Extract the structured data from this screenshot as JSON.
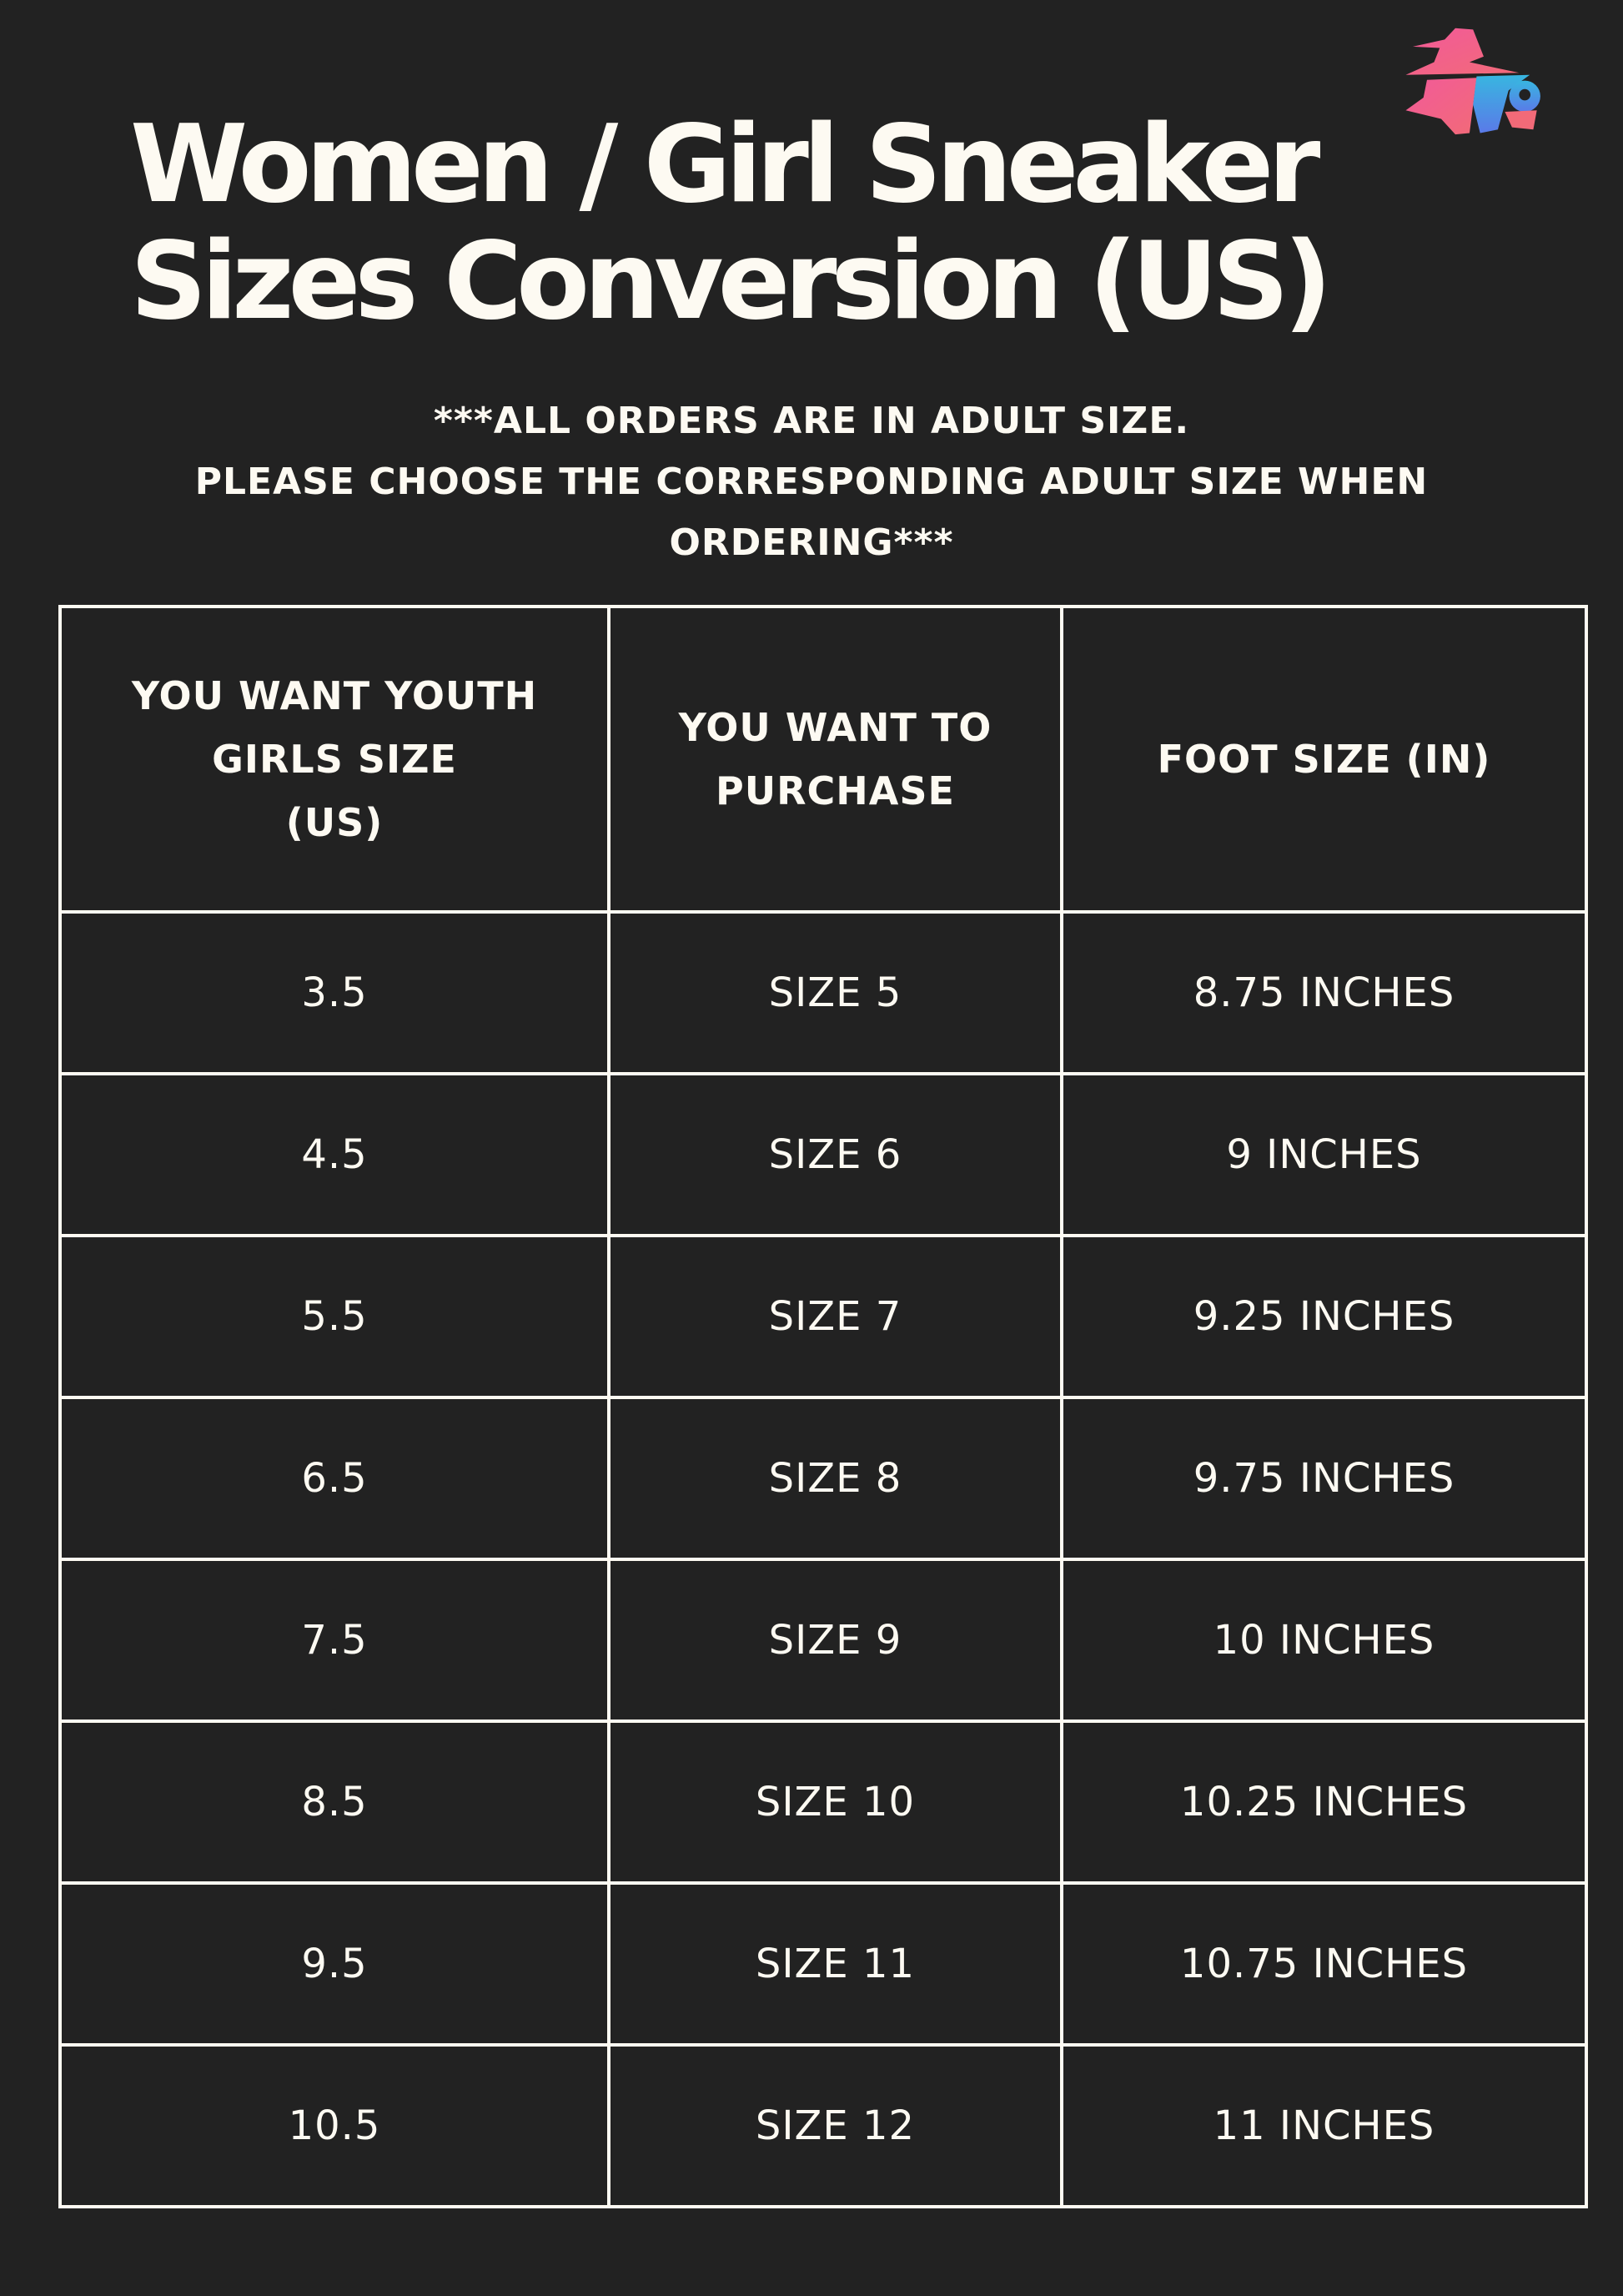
{
  "title": {
    "line1": "Women / Girl Sneaker",
    "line2": "Sizes Conversion (US)"
  },
  "logo": {
    "icon": "wizard-logo-icon",
    "colors": {
      "pink": "#f25a9a",
      "coral": "#f26a78",
      "blue": "#3aa0e0"
    }
  },
  "notice": {
    "line1": "***ALL ORDERS ARE IN ADULT SIZE.",
    "line2": "PLEASE CHOOSE THE CORRESPONDING ADULT SIZE WHEN",
    "line3": "ORDERING***"
  },
  "table": {
    "headers": [
      [
        "YOU WANT YOUTH",
        "GIRLS SIZE",
        "(US)"
      ],
      [
        "YOU WANT TO",
        "PURCHASE"
      ],
      [
        "FOOT SIZE (IN)"
      ]
    ],
    "rows": [
      [
        "3.5",
        "SIZE 5",
        "8.75 INCHES"
      ],
      [
        "4.5",
        "SIZE 6",
        "9 INCHES"
      ],
      [
        "5.5",
        "SIZE 7",
        "9.25 INCHES"
      ],
      [
        "6.5",
        "SIZE 8",
        "9.75 INCHES"
      ],
      [
        "7.5",
        "SIZE 9",
        "10 INCHES"
      ],
      [
        "8.5",
        "SIZE 10",
        "10.25 INCHES"
      ],
      [
        "9.5",
        "SIZE 11",
        "10.75 INCHES"
      ],
      [
        "10.5",
        "SIZE 12",
        "11 INCHES"
      ]
    ]
  },
  "colors": {
    "background": "#222222",
    "text": "#fdfaf2"
  }
}
